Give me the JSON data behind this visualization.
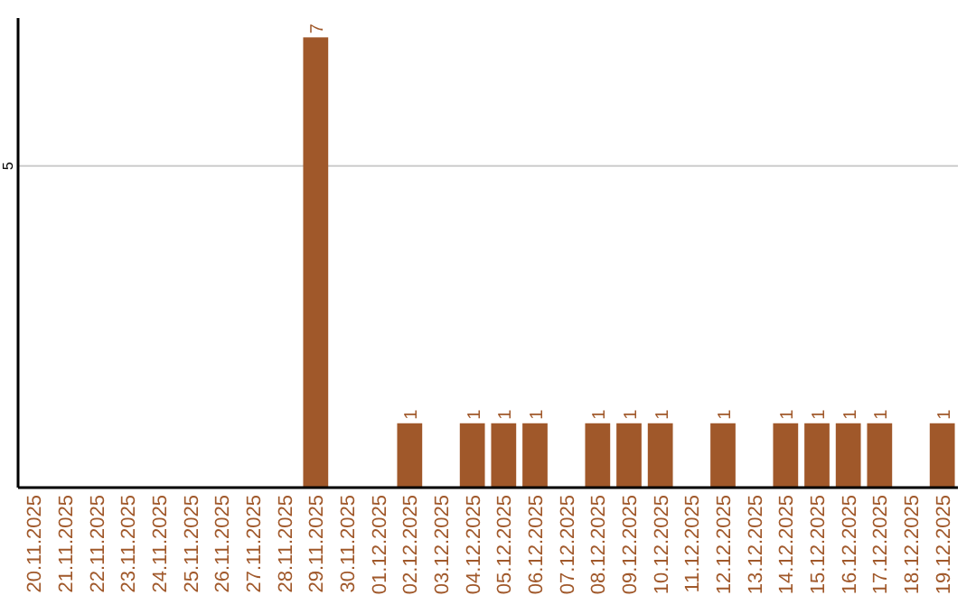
{
  "chart_data": {
    "type": "bar",
    "categories": [
      "20.11.2025",
      "21.11.2025",
      "22.11.2025",
      "23.11.2025",
      "24.11.2025",
      "25.11.2025",
      "26.11.2025",
      "27.11.2025",
      "28.11.2025",
      "29.11.2025",
      "30.11.2025",
      "01.12.2025",
      "02.12.2025",
      "03.12.2025",
      "04.12.2025",
      "05.12.2025",
      "06.12.2025",
      "07.12.2025",
      "08.12.2025",
      "09.12.2025",
      "10.12.2025",
      "11.12.2025",
      "12.12.2025",
      "13.12.2025",
      "14.12.2025",
      "15.12.2025",
      "16.12.2025",
      "17.12.2025",
      "18.12.2025",
      "19.12.2025"
    ],
    "values": [
      0,
      0,
      0,
      0,
      0,
      0,
      0,
      0,
      0,
      7,
      0,
      0,
      1,
      0,
      1,
      1,
      1,
      0,
      1,
      1,
      1,
      0,
      1,
      0,
      1,
      1,
      1,
      1,
      0,
      1
    ],
    "value_labels": [
      null,
      null,
      null,
      null,
      null,
      null,
      null,
      null,
      null,
      "7",
      null,
      null,
      "1",
      null,
      "1",
      "1",
      "1",
      null,
      "1",
      "1",
      "1",
      null,
      "1",
      null,
      "1",
      "1",
      "1",
      "1",
      null,
      "1"
    ],
    "color": "#a0582a",
    "ylim": [
      0,
      7.3
    ],
    "yticks": [
      5
    ],
    "grid": "y"
  }
}
